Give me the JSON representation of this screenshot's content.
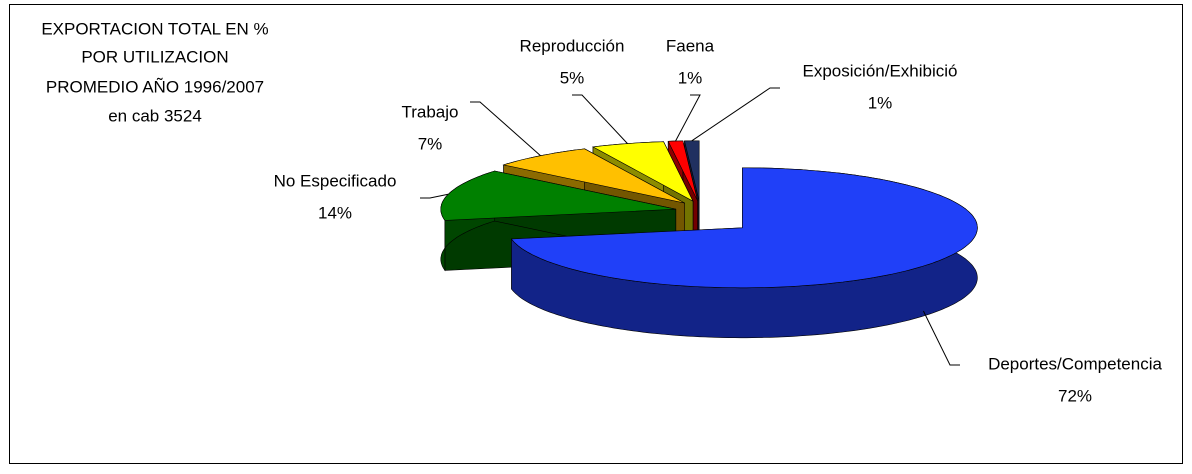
{
  "chart_data": {
    "type": "pie3d",
    "title": [
      "EXPORTACION TOTAL EN %",
      "POR UTILIZACION",
      "PROMEDIO AÑO 1996/2007",
      "en cab 3524"
    ],
    "categories": [
      "Deportes/Competencia",
      "No Especificado",
      "Trabajo",
      "Reproducción",
      "Faena",
      "Exposición/Exhibició"
    ],
    "values": [
      72,
      14,
      7,
      5,
      1,
      1
    ],
    "value_labels": [
      "72%",
      "14%",
      "7%",
      "5%",
      "1%",
      "1%"
    ],
    "colors": [
      "#2040f8",
      "#008000",
      "#ffc000",
      "#ffff00",
      "#ff0000",
      "#203060"
    ]
  }
}
